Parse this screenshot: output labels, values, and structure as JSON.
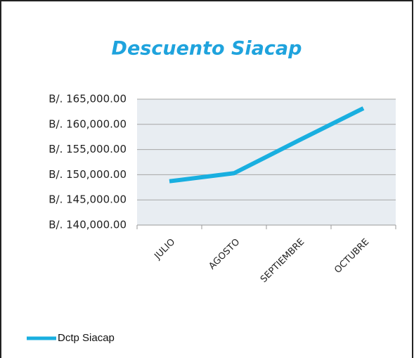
{
  "chart_data": {
    "type": "line",
    "title": "Descuento Siacap",
    "categories": [
      "JULIO",
      "AGOSTO",
      "SEPTIEMBRE",
      "OCTUBRE"
    ],
    "series": [
      {
        "name": "Dctp Siacap",
        "color": "#19afe0",
        "values": [
          148700,
          150300,
          156800,
          163200
        ]
      }
    ],
    "ylim": [
      140000,
      165000
    ],
    "yticks": [
      {
        "value": 140000,
        "label": "B/. 140,000.00"
      },
      {
        "value": 145000,
        "label": "B/. 145,000.00"
      },
      {
        "value": 150000,
        "label": "B/. 150,000.00"
      },
      {
        "value": 155000,
        "label": "B/. 155,000.00"
      },
      {
        "value": 160000,
        "label": "B/. 160,000.00"
      },
      {
        "value": 165000,
        "label": "B/. 165,000.00"
      }
    ],
    "grid": true,
    "legend": "bottom-left"
  }
}
